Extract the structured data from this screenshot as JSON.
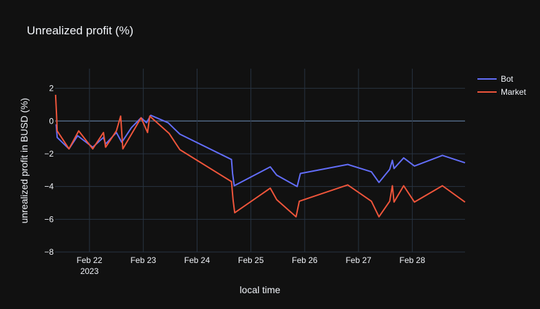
{
  "chart_data": {
    "type": "line",
    "title": "Unrealized profit (%)",
    "xlabel": "local time",
    "ylabel": "unrealized profit in BUSD (%)",
    "ylim": [
      -8,
      3.2
    ],
    "xlim": [
      21.36,
      28.98
    ],
    "yticks": [
      2,
      0,
      -2,
      -4,
      -6,
      -8
    ],
    "ytick_labels": [
      "2",
      "0",
      "−2",
      "−4",
      "−6",
      "−8"
    ],
    "xticks": [
      {
        "value": 22,
        "label": "Feb 22",
        "sublabel": "2023"
      },
      {
        "value": 23,
        "label": "Feb 23",
        "sublabel": ""
      },
      {
        "value": 24,
        "label": "Feb 24",
        "sublabel": ""
      },
      {
        "value": 25,
        "label": "Feb 25",
        "sublabel": ""
      },
      {
        "value": 26,
        "label": "Feb 26",
        "sublabel": ""
      },
      {
        "value": 27,
        "label": "Feb 27",
        "sublabel": ""
      },
      {
        "value": 28,
        "label": "Feb 28",
        "sublabel": ""
      }
    ],
    "x_unit": "day of February 2023",
    "grid": true,
    "legend_position": "top-right",
    "background_color": "#111111",
    "grid_color": "#283442",
    "series": [
      {
        "name": "Bot",
        "color": "#636efa",
        "x": [
          21.38,
          21.4,
          21.62,
          21.78,
          22.06,
          22.26,
          22.3,
          22.5,
          22.6,
          22.78,
          22.96,
          23.06,
          23.14,
          23.46,
          23.68,
          24.64,
          24.66,
          24.69,
          25.36,
          25.48,
          25.86,
          25.92,
          26.8,
          27.24,
          27.38,
          27.58,
          27.63,
          27.66,
          27.84,
          28.04,
          28.56,
          28.98
        ],
        "y": [
          -0.2,
          -1.0,
          -1.7,
          -0.9,
          -1.6,
          -1.0,
          -1.4,
          -0.7,
          -1.3,
          -0.4,
          0.2,
          -0.1,
          0.35,
          -0.1,
          -0.8,
          -2.35,
          -3.2,
          -3.95,
          -2.8,
          -3.3,
          -4.0,
          -3.2,
          -2.65,
          -3.1,
          -3.75,
          -2.95,
          -2.4,
          -2.9,
          -2.25,
          -2.75,
          -2.1,
          -2.55
        ]
      },
      {
        "name": "Market",
        "color": "#ef553b",
        "x": [
          21.37,
          21.39,
          21.4,
          21.62,
          21.8,
          22.06,
          22.26,
          22.3,
          22.5,
          22.58,
          22.62,
          22.96,
          23.08,
          23.12,
          23.48,
          23.68,
          24.64,
          24.67,
          24.7,
          25.36,
          25.48,
          25.84,
          25.9,
          26.8,
          27.24,
          27.38,
          27.58,
          27.63,
          27.66,
          27.84,
          28.04,
          28.56,
          28.98
        ],
        "y": [
          1.6,
          0.3,
          -0.6,
          -1.7,
          -0.6,
          -1.7,
          -0.7,
          -1.6,
          -0.6,
          0.3,
          -1.7,
          0.2,
          -0.7,
          0.3,
          -0.75,
          -1.75,
          -3.7,
          -4.85,
          -5.6,
          -4.1,
          -4.8,
          -5.85,
          -4.9,
          -3.9,
          -4.9,
          -5.85,
          -4.9,
          -3.95,
          -4.95,
          -3.95,
          -4.95,
          -3.95,
          -4.95
        ]
      }
    ]
  }
}
